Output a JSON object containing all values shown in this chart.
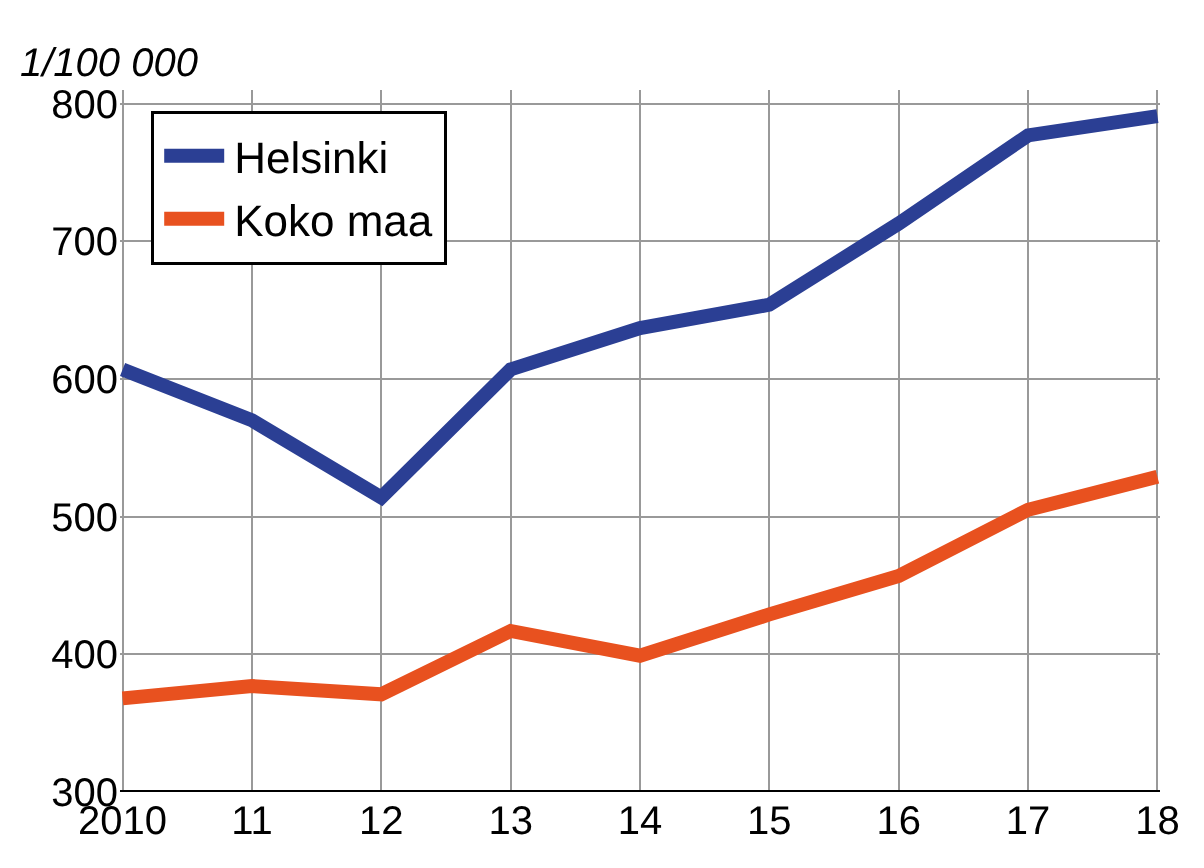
{
  "chart_data": {
    "type": "line",
    "ylabel": "1/100 000",
    "categories": [
      "2010",
      "11",
      "12",
      "13",
      "14",
      "15",
      "16",
      "17",
      "18"
    ],
    "series": [
      {
        "name": "Helsinki",
        "color": "#2b3f94",
        "values": [
          607,
          570,
          514,
          607,
          637,
          654,
          713,
          777,
          791
        ]
      },
      {
        "name": "Koko maa",
        "color": "#e8511f",
        "values": [
          368,
          377,
          371,
          417,
          399,
          429,
          457,
          505,
          529
        ]
      }
    ],
    "ylim": [
      300,
      810
    ],
    "yticks": [
      300,
      400,
      500,
      600,
      700,
      800
    ],
    "grid": true,
    "legend": "top left",
    "marker": "none",
    "line_style": "solid"
  }
}
